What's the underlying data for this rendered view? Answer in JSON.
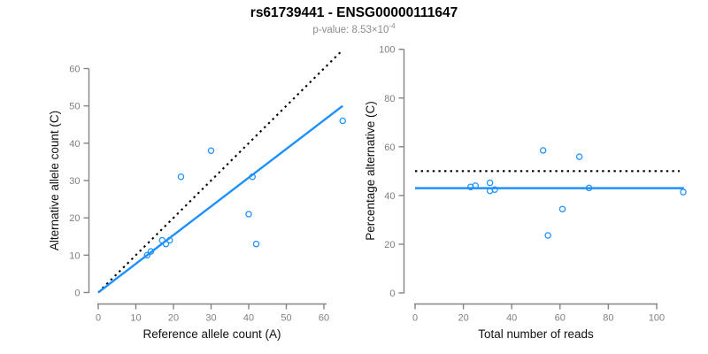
{
  "header": {
    "title": "rs61739441 - ENSG00000111647",
    "subtitle_prefix": "p-value: ",
    "subtitle_mantissa": "8.53",
    "subtitle_times": "×10",
    "subtitle_exponent": "-4"
  },
  "colors": {
    "accent_blue": "#1E90FF",
    "axis_gray": "#848484",
    "tick_label_gray": "#7f7f7f",
    "axis_title_dark": "#111111",
    "dotted_line_black": "#000000",
    "subtitle_gray": "#8c8c8c"
  },
  "chart_data": [
    {
      "type": "scatter",
      "panel": "left",
      "xlabel": "Reference allele count (A)",
      "ylabel": "Alternative allele count (C)",
      "xlim": [
        0,
        65
      ],
      "ylim": [
        0,
        65
      ],
      "xticks": [
        0,
        10,
        20,
        30,
        40,
        50,
        60
      ],
      "yticks": [
        0,
        10,
        20,
        30,
        40,
        50,
        60
      ],
      "points": [
        [
          13,
          10
        ],
        [
          14,
          11
        ],
        [
          17,
          14
        ],
        [
          18,
          13
        ],
        [
          19,
          14
        ],
        [
          22,
          31
        ],
        [
          30,
          38
        ],
        [
          40,
          21
        ],
        [
          41,
          31
        ],
        [
          42,
          13
        ],
        [
          65,
          46
        ]
      ],
      "lines": [
        {
          "name": "identity-line",
          "style": "dotted",
          "color": "#000000",
          "x1": 0,
          "y1": 0,
          "x2": 65,
          "y2": 65
        },
        {
          "name": "fit-line",
          "style": "solid",
          "color": "#1E90FF",
          "x1": 0,
          "y1": 0,
          "x2": 65,
          "y2": 50
        }
      ],
      "legend": null,
      "grid": false
    },
    {
      "type": "scatter",
      "panel": "right",
      "xlabel": "Total number of reads",
      "ylabel": "Percentage alternative (C)",
      "xlim": [
        0,
        112
      ],
      "ylim": [
        0,
        100
      ],
      "xticks": [
        0,
        20,
        40,
        60,
        80,
        100
      ],
      "yticks": [
        0,
        20,
        40,
        60,
        80,
        100
      ],
      "points": [
        [
          23,
          43.5
        ],
        [
          25,
          44
        ],
        [
          31,
          45.2
        ],
        [
          31,
          41.9
        ],
        [
          33,
          42.4
        ],
        [
          53,
          58.5
        ],
        [
          55,
          23.6
        ],
        [
          61,
          34.4
        ],
        [
          68,
          55.9
        ],
        [
          72,
          43.1
        ],
        [
          111,
          41.4
        ]
      ],
      "lines": [
        {
          "name": "expected-ratio-line",
          "style": "dotted",
          "color": "#000000",
          "x1": 0,
          "y1": 50,
          "x2": 109.5,
          "y2": 50
        },
        {
          "name": "observed-ratio-line",
          "style": "solid",
          "color": "#1E90FF",
          "x1": 0,
          "y1": 43,
          "x2": 111.3,
          "y2": 43
        }
      ],
      "legend": null,
      "grid": false
    }
  ]
}
